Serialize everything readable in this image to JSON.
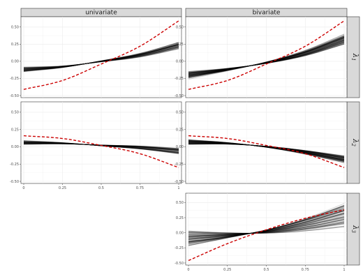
{
  "chart_data": {
    "type": "line",
    "layout": "faceted grid, 3 rows x 2 columns, bottom-left panel empty",
    "columns": [
      "univariate",
      "bivariate"
    ],
    "rows": [
      {
        "label": "λ",
        "sub": "1"
      },
      {
        "label": "λ",
        "sub": "2"
      },
      {
        "label": "λ",
        "sub": "3"
      }
    ],
    "xlim": [
      0,
      1
    ],
    "x_ticks": [
      "0",
      "0.25",
      "0.5",
      "0.75",
      "1"
    ],
    "y_ticks": [
      "-0.50",
      "-0.25",
      "0.00",
      "0.25",
      "0.50"
    ],
    "ylim": [
      -0.5,
      0.62
    ],
    "grid": true,
    "styles": {
      "true_curve": {
        "color": "#cc0000",
        "dash": "dashed"
      },
      "estimates": {
        "color": "#000000",
        "opacity": 0.18
      }
    },
    "panels": [
      {
        "row": 0,
        "col": 0,
        "true_curve": [
          [
            0,
            -0.41
          ],
          [
            0.25,
            -0.28
          ],
          [
            0.5,
            -0.04
          ],
          [
            0.75,
            0.22
          ],
          [
            1,
            0.59
          ]
        ],
        "estimate_center": [
          [
            0,
            -0.12
          ],
          [
            0.25,
            -0.08
          ],
          [
            0.5,
            0.0
          ],
          [
            0.75,
            0.09
          ],
          [
            1,
            0.23
          ]
        ],
        "estimate_spread": 0.04,
        "n_estimates": 60
      },
      {
        "row": 0,
        "col": 1,
        "true_curve": [
          [
            0,
            -0.41
          ],
          [
            0.25,
            -0.28
          ],
          [
            0.5,
            -0.04
          ],
          [
            0.75,
            0.22
          ],
          [
            1,
            0.59
          ]
        ],
        "estimate_center": [
          [
            0,
            -0.2
          ],
          [
            0.25,
            -0.12
          ],
          [
            0.5,
            -0.02
          ],
          [
            0.75,
            0.12
          ],
          [
            1,
            0.32
          ]
        ],
        "estimate_spread": 0.06,
        "n_estimates": 80
      },
      {
        "row": 1,
        "col": 0,
        "true_curve": [
          [
            0,
            0.16
          ],
          [
            0.25,
            0.12
          ],
          [
            0.5,
            0.02
          ],
          [
            0.75,
            -0.1
          ],
          [
            1,
            -0.3
          ]
        ],
        "estimate_center": [
          [
            0,
            0.06
          ],
          [
            0.25,
            0.05
          ],
          [
            0.5,
            0.02
          ],
          [
            0.75,
            -0.01
          ],
          [
            1,
            -0.06
          ]
        ],
        "estimate_spread": 0.03,
        "n_estimates": 60
      },
      {
        "row": 1,
        "col": 1,
        "true_curve": [
          [
            0,
            0.16
          ],
          [
            0.25,
            0.12
          ],
          [
            0.5,
            0.02
          ],
          [
            0.75,
            -0.1
          ],
          [
            1,
            -0.3
          ]
        ],
        "estimate_center": [
          [
            0,
            0.07
          ],
          [
            0.25,
            0.05
          ],
          [
            0.5,
            0.0
          ],
          [
            0.75,
            -0.08
          ],
          [
            1,
            -0.18
          ]
        ],
        "estimate_spread": 0.04,
        "n_estimates": 80
      },
      {
        "row": 2,
        "col": 1,
        "true_curve": [
          [
            0,
            -0.46
          ],
          [
            0.25,
            -0.18
          ],
          [
            0.5,
            0.05
          ],
          [
            0.75,
            0.24
          ],
          [
            1,
            0.38
          ]
        ],
        "estimate_center": [
          [
            0,
            -0.08
          ],
          [
            0.25,
            -0.04
          ],
          [
            0.5,
            0.02
          ],
          [
            0.75,
            0.13
          ],
          [
            1,
            0.28
          ]
        ],
        "estimate_spread": 0.14,
        "n_estimates": 80
      }
    ]
  }
}
